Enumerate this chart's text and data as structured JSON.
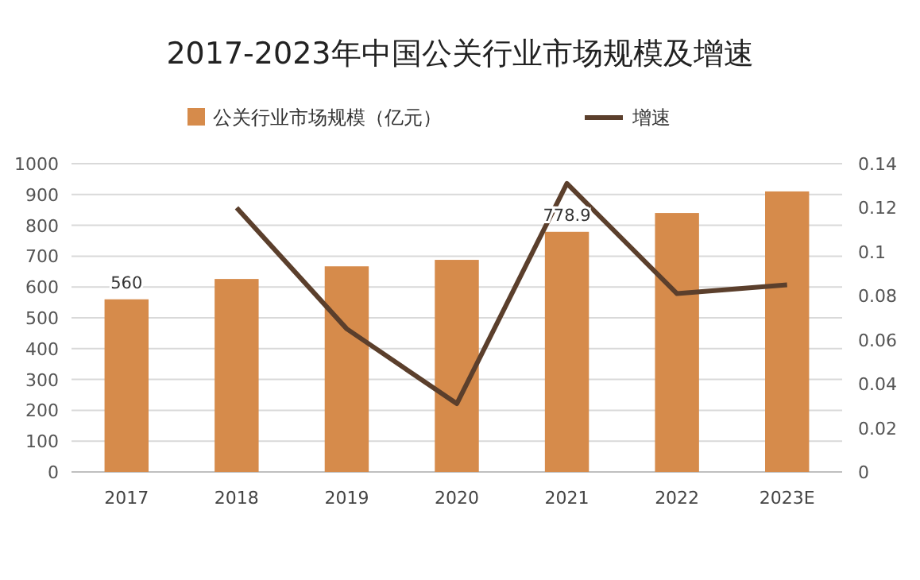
{
  "chart_data": {
    "type": "line",
    "title": "2017-2023年中国公关行业市场规模及增速",
    "categories": [
      "2017",
      "2018",
      "2019",
      "2020",
      "2021",
      "2022",
      "2023E"
    ],
    "series": [
      {
        "name": "公关行业市场规模（亿元）",
        "type": "bar",
        "color": "#d68b4b",
        "values": [
          560,
          626,
          667,
          688,
          778.9,
          840,
          910
        ],
        "value_labels": [
          "560",
          null,
          null,
          null,
          "778.9",
          null,
          null
        ]
      },
      {
        "name": "增速",
        "axis": "y2",
        "color": "#5b3f2c",
        "values": [
          null,
          0.12,
          0.065,
          0.031,
          0.131,
          0.081,
          0.085
        ]
      }
    ],
    "ylim": [
      0,
      1000
    ],
    "yticks": [
      0,
      100,
      200,
      300,
      400,
      500,
      600,
      700,
      800,
      900,
      1000
    ],
    "y2lim": [
      0,
      0.14
    ],
    "y2ticks": [
      0,
      0.02,
      0.04,
      0.06,
      0.08,
      0.1,
      0.12,
      0.14
    ],
    "grid": "y",
    "legend": "top"
  }
}
